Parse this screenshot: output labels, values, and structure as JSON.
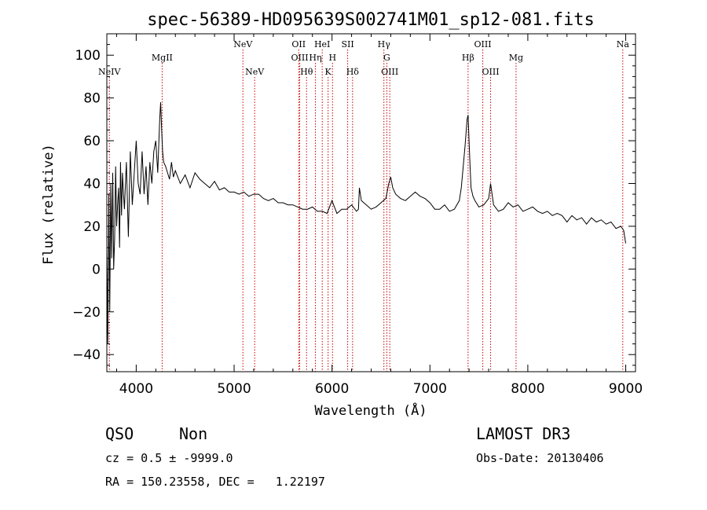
{
  "chart_data": {
    "type": "line",
    "title": "spec-56389-HD095639S002741M01_sp12-081.fits",
    "xlabel": "Wavelength (Å)",
    "ylabel": "Flux (relative)",
    "xlim": [
      3700,
      9100
    ],
    "ylim": [
      -48,
      110
    ],
    "xticks": [
      4000,
      5000,
      6000,
      7000,
      8000,
      9000
    ],
    "yticks": [
      -40,
      -20,
      0,
      20,
      40,
      60,
      80,
      100
    ],
    "series": [
      {
        "x": [
          3700,
          3710,
          3720,
          3730,
          3740,
          3750,
          3760,
          3770,
          3780,
          3790,
          3800,
          3810,
          3820,
          3830,
          3840,
          3850,
          3860,
          3870,
          3880,
          3890,
          3900,
          3920,
          3940,
          3960,
          3980,
          4000,
          4020,
          4040,
          4060,
          4080,
          4100,
          4120,
          4140,
          4160,
          4180,
          4200,
          4220,
          4240,
          4250,
          4260,
          4270,
          4280,
          4300,
          4320,
          4340,
          4360,
          4380,
          4400,
          4450,
          4500,
          4550,
          4600,
          4650,
          4700,
          4750,
          4800,
          4850,
          4900,
          4950,
          5000,
          5050,
          5100,
          5150,
          5200,
          5250,
          5300,
          5350,
          5400,
          5450,
          5500,
          5550,
          5600,
          5650,
          5700,
          5750,
          5800,
          5850,
          5900,
          5950,
          6000,
          6050,
          6100,
          6150,
          6200,
          6250,
          6270,
          6280,
          6300,
          6350,
          6400,
          6450,
          6500,
          6550,
          6580,
          6600,
          6620,
          6650,
          6700,
          6750,
          6800,
          6850,
          6900,
          6950,
          7000,
          7050,
          7100,
          7150,
          7200,
          7250,
          7300,
          7320,
          7340,
          7360,
          7380,
          7390,
          7400,
          7410,
          7420,
          7440,
          7460,
          7500,
          7550,
          7600,
          7620,
          7650,
          7700,
          7750,
          7800,
          7850,
          7900,
          7950,
          8000,
          8050,
          8100,
          8150,
          8200,
          8250,
          8300,
          8350,
          8400,
          8450,
          8500,
          8550,
          8600,
          8650,
          8700,
          8750,
          8800,
          8850,
          8900,
          8950,
          8980,
          9000
        ],
        "y": [
          10,
          -35,
          35,
          -20,
          40,
          5,
          45,
          0,
          15,
          48,
          20,
          30,
          38,
          10,
          50,
          25,
          45,
          35,
          28,
          40,
          50,
          15,
          55,
          30,
          45,
          60,
          40,
          35,
          55,
          35,
          48,
          30,
          50,
          40,
          55,
          60,
          45,
          70,
          78,
          65,
          55,
          50,
          48,
          45,
          42,
          50,
          43,
          46,
          40,
          44,
          38,
          45,
          42,
          40,
          38,
          41,
          37,
          38,
          36,
          36,
          35,
          36,
          34,
          35,
          35,
          33,
          32,
          33,
          31,
          31,
          30,
          30,
          29,
          28,
          28,
          29,
          27,
          27,
          26,
          32,
          26,
          28,
          28,
          30,
          27,
          28,
          38,
          32,
          30,
          28,
          29,
          31,
          33,
          40,
          43,
          38,
          35,
          33,
          32,
          34,
          36,
          34,
          33,
          31,
          28,
          28,
          30,
          27,
          28,
          32,
          38,
          48,
          58,
          70,
          72,
          60,
          48,
          38,
          34,
          32,
          29,
          30,
          33,
          40,
          30,
          27,
          28,
          31,
          29,
          30,
          27,
          28,
          29,
          27,
          26,
          27,
          25,
          26,
          25,
          22,
          25,
          23,
          24,
          21,
          24,
          22,
          23,
          21,
          22,
          19,
          20,
          18,
          12
        ]
      }
    ],
    "line_markers": [
      {
        "label": "NeIV",
        "wavelength": 3726,
        "row": 2
      },
      {
        "label": "MgII",
        "wavelength": 4265,
        "row": 1
      },
      {
        "label": "NeV",
        "wavelength": 5090,
        "row": 0
      },
      {
        "label": "NeV",
        "wavelength": 5210,
        "row": 2
      },
      {
        "label": "OII",
        "wavelength": 5660,
        "row": 0
      },
      {
        "label": "OIII",
        "wavelength": 5670,
        "row": 1
      },
      {
        "label": "Hθ",
        "wavelength": 5740,
        "row": 2
      },
      {
        "label": "Hη",
        "wavelength": 5830,
        "row": 1
      },
      {
        "label": "HeI",
        "wavelength": 5900,
        "row": 0
      },
      {
        "label": "K",
        "wavelength": 5960,
        "row": 2
      },
      {
        "label": "H",
        "wavelength": 6005,
        "row": 1
      },
      {
        "label": "SII",
        "wavelength": 6160,
        "row": 0
      },
      {
        "label": "Hδ",
        "wavelength": 6210,
        "row": 2
      },
      {
        "label": "Hγ",
        "wavelength": 6530,
        "row": 0
      },
      {
        "label": "G",
        "wavelength": 6560,
        "row": 1
      },
      {
        "label": "OIII",
        "wavelength": 6590,
        "row": 2
      },
      {
        "label": "Hβ",
        "wavelength": 7390,
        "row": 1
      },
      {
        "label": "OIII",
        "wavelength": 7540,
        "row": 0
      },
      {
        "label": "OIII",
        "wavelength": 7620,
        "row": 2
      },
      {
        "label": "Mg",
        "wavelength": 7880,
        "row": 1
      },
      {
        "label": "Na",
        "wavelength": 8970,
        "row": 0
      }
    ],
    "grid": false,
    "colors": {
      "spectrum": "#000000",
      "marker": "#cc0000"
    }
  },
  "info": {
    "class": "QSO",
    "subclass": "Non",
    "survey": "LAMOST DR3",
    "cz_line": "cz = 0.5 ± -9999.0",
    "obs_date_line": "Obs-Date: 20130406",
    "radec_line": "RA = 150.23558, DEC =   1.22197"
  }
}
